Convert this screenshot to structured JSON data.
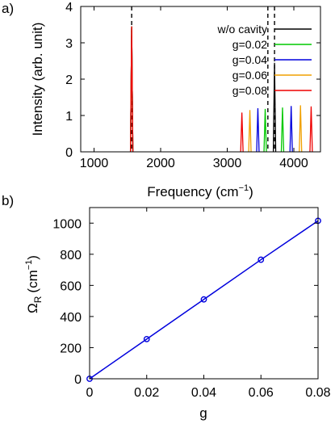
{
  "chart_data": [
    {
      "panel_label": "a)",
      "type": "line",
      "xlabel": "Frequency (cm",
      "xlabel_sup": "−1",
      "xlabel_tail": ")",
      "ylabel": "Intensity (arb. unit)",
      "xlim": [
        800,
        4400
      ],
      "ylim": [
        0,
        4
      ],
      "xticks": [
        1000,
        2000,
        3000,
        4000
      ],
      "yticks": [
        0,
        1,
        2,
        3,
        4
      ],
      "dashed_lines_x": [
        1565,
        3610,
        3710
      ],
      "peak_width": 18,
      "legend_position": "top-right",
      "series": [
        {
          "name": "w/o cavity",
          "color": "#000000",
          "peaks": [
            [
              1565,
              3.45
            ],
            [
              3710,
              2.45
            ]
          ]
        },
        {
          "name": "g=0.02",
          "color": "#00c800",
          "peaks": [
            [
              1565,
              3.45
            ],
            [
              3570,
              1.18
            ],
            [
              3830,
              1.22
            ]
          ]
        },
        {
          "name": "g=0.04",
          "color": "#0000dd",
          "peaks": [
            [
              1565,
              3.45
            ],
            [
              3460,
              1.2
            ],
            [
              3960,
              1.26
            ]
          ]
        },
        {
          "name": "g=0.06",
          "color": "#f0a000",
          "peaks": [
            [
              1565,
              3.45
            ],
            [
              3340,
              1.15
            ],
            [
              4100,
              1.28
            ]
          ]
        },
        {
          "name": "g=0.08",
          "color": "#ee0000",
          "peaks": [
            [
              1565,
              3.45
            ],
            [
              3220,
              1.08
            ],
            [
              4260,
              1.25
            ]
          ]
        }
      ]
    },
    {
      "panel_label": "b)",
      "type": "line",
      "xlabel": "g",
      "ylabel": "Ω",
      "ylabel_sub": "R",
      "ylabel_tail": "(cm",
      "ylabel_sup": "−1",
      "ylabel_close": ")",
      "xlim": [
        0,
        0.08
      ],
      "ylim": [
        0,
        1100
      ],
      "xticks": [
        0,
        0.02,
        0.04,
        0.06,
        0.08
      ],
      "xtick_labels": [
        "0",
        "0.02",
        "0.04",
        "0.06",
        "0.08"
      ],
      "yticks": [
        0,
        200,
        400,
        600,
        800,
        1000
      ],
      "series": [
        {
          "color": "#0000dd",
          "x": [
            0,
            0.02,
            0.04,
            0.06,
            0.08
          ],
          "y": [
            0,
            255,
            510,
            765,
            1015
          ]
        }
      ]
    }
  ]
}
